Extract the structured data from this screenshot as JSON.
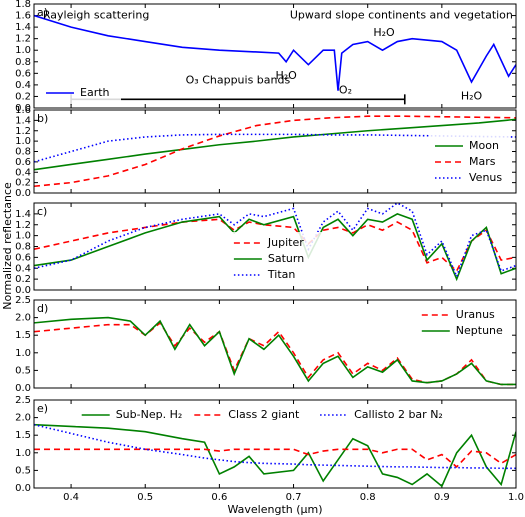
{
  "ylabel": "Normalized reflectance",
  "chart_data": [
    {
      "type": "line",
      "label": "a)",
      "legend": "lower left",
      "xlim": [
        0.35,
        1.0
      ],
      "xticks": [
        0.4,
        0.5,
        0.6,
        0.7,
        0.8,
        0.9,
        {
          "value": 1.0,
          "label": "1.0"
        }
      ],
      "ylim": [
        0,
        1.8
      ],
      "yticks": [
        {
          "value": 0,
          "label": "0.0"
        },
        0.2,
        0.4,
        0.6,
        0.8,
        {
          "value": 1.0,
          "label": "1.0"
        },
        1.2,
        1.4,
        1.6,
        1.8
      ],
      "x": [
        0.35,
        0.4,
        0.45,
        0.5,
        0.55,
        0.6,
        0.65,
        0.68,
        0.69,
        0.7,
        0.72,
        0.74,
        0.755,
        0.76,
        0.765,
        0.78,
        0.8,
        0.82,
        0.84,
        0.86,
        0.9,
        0.92,
        0.94,
        0.96,
        0.97,
        0.99,
        1.0
      ],
      "series": [
        {
          "name": "Earth",
          "color": "#0000ff",
          "linestyle": "solid",
          "values": [
            1.6,
            1.4,
            1.25,
            1.15,
            1.05,
            1.0,
            0.97,
            0.95,
            0.8,
            1.0,
            0.75,
            1.0,
            1.0,
            0.3,
            0.95,
            1.1,
            1.15,
            1.0,
            1.15,
            1.2,
            1.15,
            1.0,
            0.45,
            0.9,
            1.1,
            0.55,
            0.75
          ]
        }
      ],
      "annotations": [
        "Rayleigh scattering",
        "Upward slope continents and vegetation",
        "H₂O",
        "H₂O",
        "O₂",
        "H₂O",
        "O₃ Chappuis bands"
      ],
      "bracket": {
        "x": [
          0.4,
          0.85
        ],
        "y": 0.15
      }
    },
    {
      "type": "line",
      "label": "b)",
      "legend": "lower right",
      "xlim": [
        0.35,
        1.0
      ],
      "xticks": [
        0.4,
        0.5,
        0.6,
        0.7,
        0.8,
        0.9,
        {
          "value": 1.0,
          "label": "1.0"
        }
      ],
      "ylim": [
        0,
        1.6
      ],
      "yticks": [
        {
          "value": 0,
          "label": "0.0"
        },
        0.2,
        0.4,
        0.6,
        0.8,
        {
          "value": 1.0,
          "label": "1.0"
        },
        1.2,
        1.4,
        1.6
      ],
      "x": [
        0.35,
        0.4,
        0.45,
        0.5,
        0.55,
        0.6,
        0.65,
        0.7,
        0.75,
        0.8,
        0.85,
        0.9,
        0.95,
        1.0
      ],
      "series": [
        {
          "name": "Moon",
          "color": "#008000",
          "linestyle": "solid",
          "values": [
            0.45,
            0.55,
            0.65,
            0.75,
            0.84,
            0.93,
            1.0,
            1.08,
            1.14,
            1.2,
            1.25,
            1.3,
            1.35,
            1.42
          ]
        },
        {
          "name": "Mars",
          "color": "#ff0000",
          "linestyle": "dashed",
          "values": [
            0.13,
            0.2,
            0.33,
            0.55,
            0.85,
            1.1,
            1.3,
            1.4,
            1.45,
            1.48,
            1.48,
            1.47,
            1.46,
            1.45
          ]
        },
        {
          "name": "Venus",
          "color": "#0000ff",
          "linestyle": "dotted",
          "values": [
            0.6,
            0.8,
            1.0,
            1.08,
            1.12,
            1.13,
            1.13,
            1.13,
            1.12,
            1.12,
            1.11,
            1.1,
            1.09,
            1.08
          ]
        }
      ]
    },
    {
      "type": "line",
      "label": "c)",
      "legend": "lower center",
      "ylabel": "Normalized reflectance",
      "xlim": [
        0.35,
        1.0
      ],
      "xticks": [
        0.4,
        0.5,
        0.6,
        0.7,
        0.8,
        0.9,
        {
          "value": 1.0,
          "label": "1.0"
        }
      ],
      "ylim": [
        0,
        1.6
      ],
      "yticks": [
        {
          "value": 0,
          "label": "0.0"
        },
        0.2,
        0.4,
        0.6,
        0.8,
        {
          "value": 1.0,
          "label": "1.0"
        },
        1.2,
        1.4
      ],
      "x": [
        0.35,
        0.4,
        0.45,
        0.5,
        0.55,
        0.6,
        0.62,
        0.64,
        0.66,
        0.7,
        0.72,
        0.74,
        0.76,
        0.78,
        0.8,
        0.82,
        0.84,
        0.86,
        0.88,
        0.9,
        0.92,
        0.94,
        0.96,
        0.98,
        1.0
      ],
      "series": [
        {
          "name": "Jupiter",
          "color": "#ff0000",
          "linestyle": "dashed",
          "values": [
            0.75,
            0.9,
            1.05,
            1.15,
            1.25,
            1.3,
            1.1,
            1.25,
            1.2,
            1.15,
            0.85,
            1.1,
            1.15,
            1.05,
            1.2,
            1.1,
            1.25,
            1.1,
            0.5,
            0.6,
            0.35,
            0.9,
            1.1,
            0.55,
            0.6
          ]
        },
        {
          "name": "Saturn",
          "color": "#008000",
          "linestyle": "solid",
          "values": [
            0.45,
            0.55,
            0.8,
            1.05,
            1.25,
            1.35,
            1.05,
            1.3,
            1.2,
            1.35,
            0.6,
            1.15,
            1.3,
            1.0,
            1.3,
            1.25,
            1.4,
            1.3,
            0.55,
            0.85,
            0.2,
            0.9,
            1.15,
            0.3,
            0.4
          ]
        },
        {
          "name": "Titan",
          "color": "#0000ff",
          "linestyle": "dotted",
          "values": [
            0.4,
            0.55,
            0.9,
            1.15,
            1.3,
            1.4,
            1.2,
            1.4,
            1.35,
            1.5,
            0.75,
            1.25,
            1.45,
            1.1,
            1.5,
            1.4,
            1.6,
            1.45,
            0.65,
            0.9,
            0.25,
            1.0,
            1.1,
            0.35,
            0.45
          ]
        }
      ]
    },
    {
      "type": "line",
      "label": "d)",
      "legend": "upper right",
      "xlim": [
        0.35,
        1.0
      ],
      "xticks": [
        0.4,
        0.5,
        0.6,
        0.7,
        0.8,
        0.9,
        {
          "value": 1.0,
          "label": "1.0"
        }
      ],
      "ylim": [
        0,
        2.5
      ],
      "yticks": [
        {
          "value": 0,
          "label": "0.0"
        },
        0.5,
        {
          "value": 1.0,
          "label": "1.0"
        },
        1.5,
        {
          "value": 2.0,
          "label": "2.0"
        },
        2.5
      ],
      "x": [
        0.35,
        0.4,
        0.45,
        0.48,
        0.5,
        0.52,
        0.54,
        0.56,
        0.58,
        0.6,
        0.62,
        0.64,
        0.66,
        0.68,
        0.7,
        0.72,
        0.74,
        0.76,
        0.78,
        0.8,
        0.82,
        0.84,
        0.86,
        0.88,
        0.9,
        0.92,
        0.94,
        0.96,
        0.98,
        1.0
      ],
      "series": [
        {
          "name": "Uranus",
          "color": "#ff0000",
          "linestyle": "dashed",
          "values": [
            1.6,
            1.7,
            1.8,
            1.8,
            1.5,
            1.85,
            1.2,
            1.7,
            1.3,
            1.6,
            0.5,
            1.4,
            1.2,
            1.6,
            1.0,
            0.3,
            0.8,
            1.0,
            0.4,
            0.7,
            0.5,
            0.85,
            0.25,
            0.15,
            0.2,
            0.4,
            0.8,
            0.2,
            0.1,
            0.1
          ]
        },
        {
          "name": "Neptune",
          "color": "#008000",
          "linestyle": "solid",
          "values": [
            1.85,
            1.95,
            2.0,
            1.9,
            1.5,
            1.9,
            1.1,
            1.8,
            1.2,
            1.6,
            0.4,
            1.4,
            1.1,
            1.5,
            0.9,
            0.2,
            0.7,
            0.9,
            0.3,
            0.6,
            0.45,
            0.8,
            0.2,
            0.15,
            0.2,
            0.4,
            0.7,
            0.2,
            0.1,
            0.1
          ]
        }
      ]
    },
    {
      "type": "line",
      "label": "e)",
      "legend": "upper center",
      "xlabel": "Wavelength (μm)",
      "xlim": [
        0.35,
        1.0
      ],
      "xticks": [
        0.4,
        0.5,
        0.6,
        0.7,
        0.8,
        0.9,
        {
          "value": 1.0,
          "label": "1.0"
        }
      ],
      "ylim": [
        0,
        2.5
      ],
      "yticks": [
        {
          "value": 0,
          "label": "0.0"
        },
        0.5,
        {
          "value": 1.0,
          "label": "1.0"
        },
        1.5,
        {
          "value": 2.0,
          "label": "2.0"
        },
        2.5
      ],
      "x": [
        0.35,
        0.4,
        0.45,
        0.5,
        0.55,
        0.58,
        0.6,
        0.62,
        0.64,
        0.66,
        0.7,
        0.72,
        0.74,
        0.76,
        0.78,
        0.8,
        0.82,
        0.84,
        0.86,
        0.88,
        0.9,
        0.92,
        0.94,
        0.96,
        0.98,
        1.0
      ],
      "series": [
        {
          "name": "Sub-Nep. H₂",
          "color": "#008000",
          "linestyle": "solid",
          "values": [
            1.8,
            1.75,
            1.7,
            1.6,
            1.4,
            1.3,
            0.4,
            0.6,
            0.9,
            0.4,
            0.5,
            1.0,
            0.2,
            0.8,
            1.4,
            1.2,
            0.4,
            0.3,
            0.1,
            0.4,
            0.05,
            1.0,
            1.5,
            0.6,
            0.1,
            1.6
          ]
        },
        {
          "name": "Class 2 giant",
          "color": "#ff0000",
          "linestyle": "dashed",
          "values": [
            1.1,
            1.1,
            1.1,
            1.1,
            1.1,
            1.1,
            1.05,
            1.1,
            1.1,
            1.1,
            1.1,
            0.95,
            1.05,
            1.1,
            1.1,
            1.1,
            1.0,
            1.1,
            1.1,
            0.8,
            0.95,
            0.6,
            1.05,
            1.0,
            0.7,
            0.95
          ]
        },
        {
          "name": "Callisto 2 bar N₂",
          "color": "#0000ff",
          "linestyle": "dotted",
          "values": [
            1.8,
            1.55,
            1.3,
            1.1,
            0.95,
            0.85,
            0.8,
            0.75,
            0.72,
            0.7,
            0.68,
            0.66,
            0.65,
            0.64,
            0.63,
            0.62,
            0.61,
            0.6,
            0.6,
            0.59,
            0.58,
            0.58,
            0.57,
            0.57,
            0.56,
            0.56
          ]
        }
      ]
    }
  ]
}
